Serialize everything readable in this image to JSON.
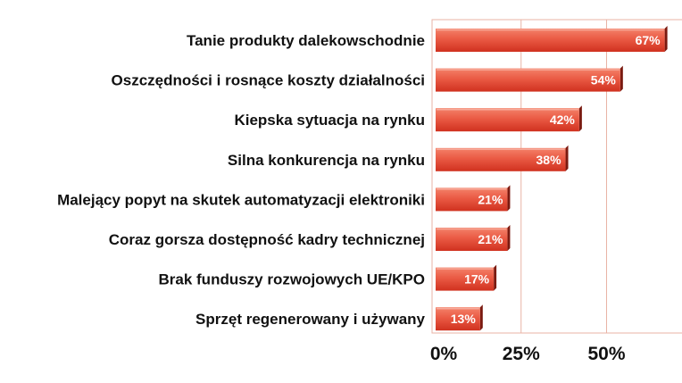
{
  "chart_data": {
    "type": "bar",
    "orientation": "horizontal",
    "categories": [
      "Tanie produkty dalekowschodnie",
      "Oszczędności i rosnące koszty działalności",
      "Kiepska sytuacja na rynku",
      "Silna konkurencja na rynku",
      "Malejący popyt na skutek automatyzacji elektroniki",
      "Coraz gorsza dostępność kadry technicznej",
      "Brak funduszy rozwojowych UE/KPO",
      "Sprzęt regenerowany i używany"
    ],
    "values": [
      67,
      54,
      42,
      38,
      21,
      21,
      17,
      13
    ],
    "value_labels": [
      "67%",
      "54%",
      "42%",
      "38%",
      "21%",
      "21%",
      "17%",
      "13%"
    ],
    "x_ticks": [
      0,
      25,
      50
    ],
    "x_tick_labels": [
      "0%",
      "25%",
      "50%"
    ],
    "xlim": [
      0,
      70
    ],
    "grid": true,
    "legend": "none",
    "colors": {
      "bar_top": "#f4826a",
      "bar_mid": "#ea5a44",
      "bar_bottom": "#d0311f",
      "bar_shadow": "#7a1a10",
      "grid": "#e9b3a6",
      "plot_border": "#e9b3a6"
    }
  }
}
